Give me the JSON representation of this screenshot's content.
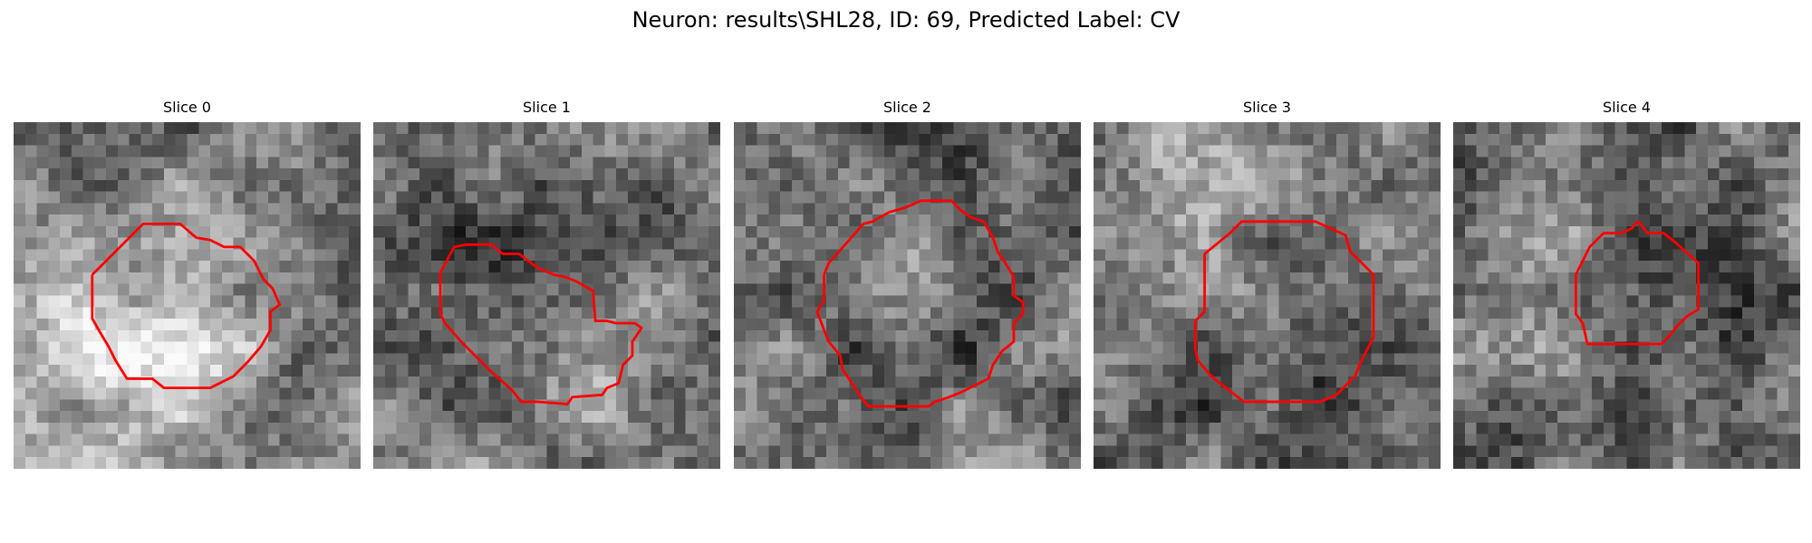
{
  "figure": {
    "title": "Neuron: results\\SHL28, ID: 69, Predicted Label: CV"
  },
  "colors": {
    "contour": "#ff0000",
    "background": "#ffffff"
  },
  "panels": [
    {
      "title": "Slice 0",
      "image": "grayscale-microscopy-patch",
      "contour_shape": "round-octagon"
    },
    {
      "title": "Slice 1",
      "image": "grayscale-microscopy-patch",
      "contour_shape": "elongated-diagonal"
    },
    {
      "title": "Slice 2",
      "image": "grayscale-microscopy-patch",
      "contour_shape": "round-jagged"
    },
    {
      "title": "Slice 3",
      "image": "grayscale-microscopy-patch",
      "contour_shape": "octagon"
    },
    {
      "title": "Slice 4",
      "image": "grayscale-microscopy-patch",
      "contour_shape": "small-octagon"
    }
  ]
}
